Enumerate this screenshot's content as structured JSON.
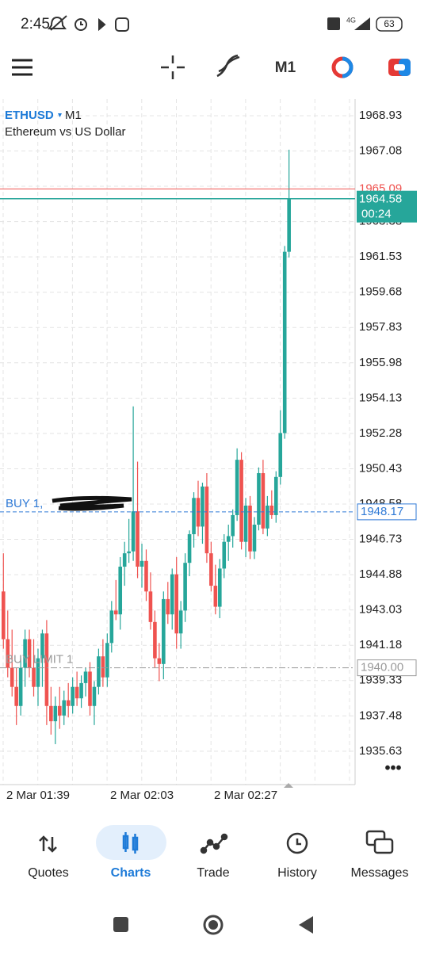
{
  "status_bar": {
    "time": "2:45",
    "network": "4G",
    "battery": "63"
  },
  "toolbar": {
    "timeframe": "M1"
  },
  "chart_data": {
    "type": "candlestick",
    "symbol": "ETHUSD",
    "timeframe": "M1",
    "description": "Ethereum vs US Dollar",
    "categories": [
      null,
      null,
      null,
      null,
      null,
      null,
      null,
      null,
      "2 Mar 01:39",
      null,
      null,
      null,
      null,
      null,
      null,
      null,
      null,
      null,
      null,
      null,
      null,
      null,
      null,
      null,
      null,
      null,
      null,
      null,
      null,
      null,
      null,
      null,
      "2 Mar 02:03",
      null,
      null,
      null,
      null,
      null,
      null,
      null,
      null,
      null,
      null,
      null,
      null,
      null,
      null,
      null,
      null,
      null,
      null,
      null,
      null,
      null,
      null,
      null,
      "2 Mar 02:27",
      null,
      null,
      null,
      null,
      null,
      null,
      null,
      null,
      null,
      null
    ],
    "open": [
      1944,
      1941.5,
      1940,
      1939,
      1938,
      1940,
      1941.5,
      1940,
      1939,
      1940.5,
      1941.8,
      1938,
      1937.2,
      1938,
      1937.5,
      1938.3,
      1938,
      1939,
      1938.4,
      1939.2,
      1939.8,
      1938,
      1939,
      1940.6,
      1939.5,
      1941.3,
      1943,
      1942.8,
      1945.3,
      1946,
      1946.1,
      1948.2,
      1945.3,
      1945.6,
      1944,
      1942.4,
      1940.5,
      1940.2,
      1943.6,
      1942.8,
      1944.9,
      1941.8,
      1943,
      1945.5,
      1947,
      1948.9,
      1947.4,
      1949.5,
      1946,
      1944.3,
      1943.2,
      1945.2,
      1946.6,
      1946.9,
      1948,
      1950.9,
      1946.6,
      1948.5,
      1946.1,
      1947.5,
      1950.2,
      1947.3,
      1948.5,
      1948,
      1950,
      1952.3,
      1961.8
    ],
    "high": [
      1946,
      1943,
      1942,
      1940,
      1940.5,
      1942,
      1942,
      1941.5,
      1941,
      1942,
      1942.5,
      1939,
      1938.5,
      1939,
      1938.8,
      1939.2,
      1939.5,
      1939.8,
      1939.6,
      1940,
      1940.3,
      1939.3,
      1941,
      1941.5,
      1941.8,
      1943.5,
      1944.6,
      1945.8,
      1946.6,
      1947.8,
      1953.7,
      1950.8,
      1946.5,
      1946.2,
      1945,
      1943,
      1941.3,
      1944,
      1944.5,
      1945.2,
      1945.8,
      1943.5,
      1946,
      1947.2,
      1949.2,
      1949.8,
      1949.7,
      1950.2,
      1946.6,
      1945.4,
      1945.7,
      1947,
      1947.5,
      1948.3,
      1951.5,
      1951.3,
      1948.9,
      1949,
      1947.9,
      1950.5,
      1950.9,
      1949,
      1949.3,
      1950.3,
      1953.5,
      1962.1,
      1967.15
    ],
    "low": [
      1941,
      1939.5,
      1938.5,
      1937,
      1937.5,
      1939,
      1939.5,
      1938.5,
      1938,
      1939,
      1937,
      1936.5,
      1936,
      1936.8,
      1937,
      1937.4,
      1937.6,
      1938,
      1937.9,
      1938.5,
      1937.5,
      1937,
      1938.6,
      1939,
      1939,
      1940.8,
      1942.5,
      1942,
      1944.3,
      1945.5,
      1945.6,
      1944.7,
      1944.2,
      1943.5,
      1942,
      1940,
      1939.3,
      1939.4,
      1942.3,
      1942,
      1941,
      1941,
      1942.4,
      1944.8,
      1946.3,
      1946.9,
      1946.5,
      1945.5,
      1944,
      1942.8,
      1942.6,
      1944.7,
      1945.6,
      1946.3,
      1947.7,
      1946.2,
      1945.8,
      1945.7,
      1945.7,
      1947.2,
      1947,
      1946.9,
      1947.8,
      1947.6,
      1949.6,
      1952,
      1961.5
    ],
    "close": [
      1941.5,
      1940,
      1939,
      1938,
      1940,
      1941.5,
      1940,
      1939,
      1940.5,
      1941.8,
      1938,
      1937.2,
      1938,
      1937.5,
      1938.3,
      1938,
      1939,
      1938.4,
      1939.2,
      1939.8,
      1938,
      1939,
      1940.6,
      1939.5,
      1941.3,
      1943,
      1942.8,
      1945.3,
      1946,
      1946.1,
      1948.2,
      1945.3,
      1945.6,
      1944,
      1942.4,
      1940.5,
      1940.2,
      1943.6,
      1942.8,
      1944.9,
      1941.8,
      1943,
      1945.5,
      1947,
      1948.9,
      1947.4,
      1949.5,
      1946,
      1944.3,
      1943.2,
      1945.2,
      1946.6,
      1946.9,
      1948,
      1950.9,
      1946.6,
      1948.5,
      1946.1,
      1947.5,
      1950.2,
      1947.3,
      1948.5,
      1948,
      1950,
      1952.3,
      1961.8,
      1964.58
    ],
    "ylim": [
      1933.88,
      1969.8
    ],
    "yticks": [
      1968.93,
      1967.08,
      1965.23,
      1963.38,
      1961.53,
      1959.68,
      1957.83,
      1955.98,
      1954.13,
      1952.28,
      1950.43,
      1948.58,
      1946.73,
      1944.88,
      1943.03,
      1941.18,
      1939.33,
      1937.48,
      1935.63
    ],
    "grid": true,
    "up_color": "#26a69a",
    "down_color": "#ef5350",
    "ask": 1965.09,
    "bid": 1964.58,
    "countdown": "00:24",
    "orders": [
      {
        "label": "BUY 1,",
        "price": 1948.17,
        "color": "#2f7ad6"
      },
      {
        "label": "BUY LIMIT 1",
        "price": {
          "value": 1940,
          "label": "1940.00"
        },
        "color": "#9a9a9a"
      }
    ]
  },
  "nav": {
    "tabs": [
      "Quotes",
      "Charts",
      "Trade",
      "History",
      "Messages"
    ]
  }
}
